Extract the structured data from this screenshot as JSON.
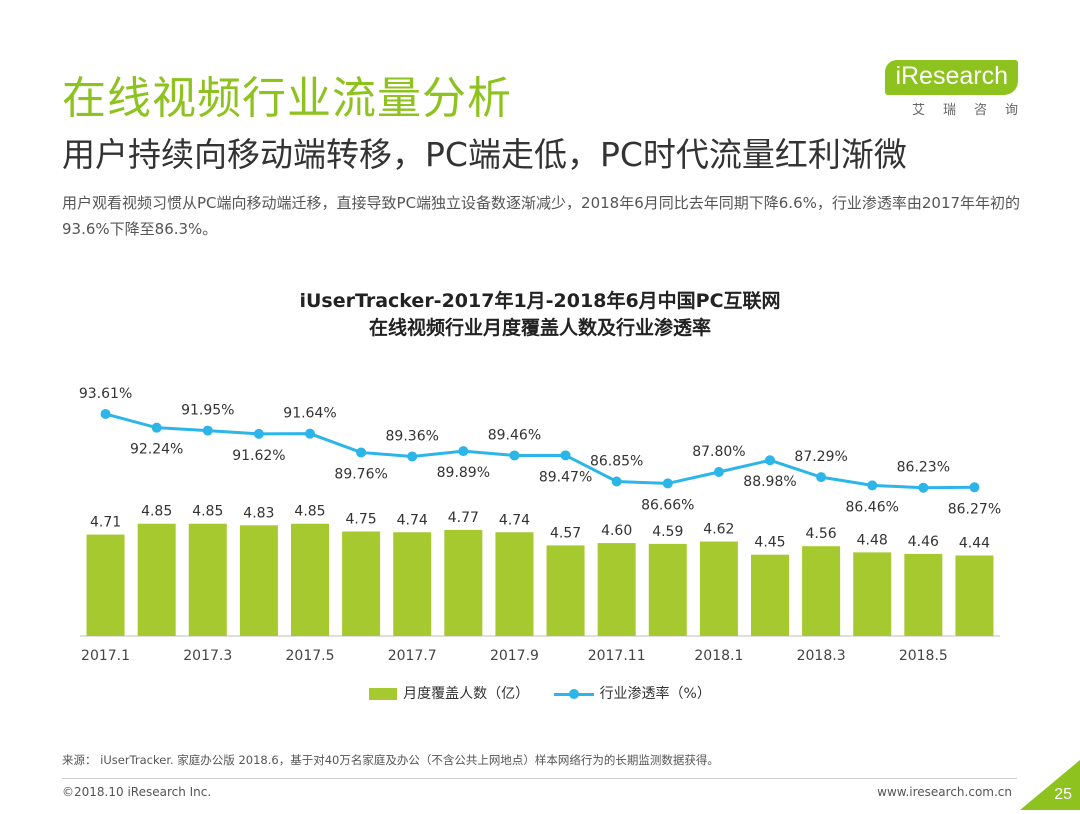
{
  "header": {
    "title": "在线视频行业流量分析",
    "subtitle": "用户持续向移动端转移，PC端走低，PC时代流量红利渐微",
    "description": "用户观看视频习惯从PC端向移动端迁移，直接导致PC端独立设备数逐渐减少，2018年6月同比去年同期下降6.6%，行业渗透率由2017年年初的93.6%下降至86.3%。"
  },
  "logo": {
    "brand_i": "i",
    "brand_rest": "Research",
    "chinese": "艾瑞咨询"
  },
  "chart_data": {
    "type": "bar+line",
    "title_line1": "iUserTracker-2017年1月-2018年6月中国PC互联网",
    "title_line2": "在线视频行业月度覆盖人数及行业渗透率",
    "categories": [
      "2017.1",
      "2017.2",
      "2017.3",
      "2017.4",
      "2017.5",
      "2017.6",
      "2017.7",
      "2017.8",
      "2017.9",
      "2017.10",
      "2017.11",
      "2017.12",
      "2018.1",
      "2018.2",
      "2018.3",
      "2018.4",
      "2018.5",
      "2018.6"
    ],
    "tick_labels": [
      "2017.1",
      "",
      "2017.3",
      "",
      "2017.5",
      "",
      "2017.7",
      "",
      "2017.9",
      "",
      "2017.11",
      "",
      "2018.1",
      "",
      "2018.3",
      "",
      "2018.5",
      ""
    ],
    "series": [
      {
        "name": "月度覆盖人数（亿）",
        "type": "bar",
        "color": "#a5c92e",
        "values": [
          4.71,
          4.85,
          4.85,
          4.83,
          4.85,
          4.75,
          4.74,
          4.77,
          4.74,
          4.57,
          4.6,
          4.59,
          4.62,
          4.45,
          4.56,
          4.48,
          4.46,
          4.44
        ],
        "labels": [
          "4.71",
          "4.85",
          "4.85",
          "4.83",
          "4.85",
          "4.75",
          "4.74",
          "4.77",
          "4.74",
          "4.57",
          "4.60",
          "4.59",
          "4.62",
          "4.45",
          "4.56",
          "4.48",
          "4.46",
          "4.44"
        ]
      },
      {
        "name": "行业渗透率（%）",
        "type": "line",
        "color": "#2cb5e8",
        "values": [
          93.61,
          92.24,
          91.95,
          91.62,
          91.64,
          89.76,
          89.36,
          89.89,
          89.46,
          89.47,
          86.85,
          86.66,
          87.8,
          88.98,
          87.29,
          86.46,
          86.23,
          86.27
        ],
        "labels": [
          "93.61%",
          "92.24%",
          "91.95%",
          "91.62%",
          "91.64%",
          "89.76%",
          "89.36%",
          "89.89%",
          "89.46%",
          "89.47%",
          "86.85%",
          "86.66%",
          "87.80%",
          "88.98%",
          "87.29%",
          "86.46%",
          "86.23%",
          "86.27%"
        ]
      }
    ],
    "bar_axis_range": [
      3.4,
      4.95
    ],
    "line_axis_range": [
      83,
      96
    ],
    "legend_position": "bottom"
  },
  "footer": {
    "source": "来源： iUserTracker. 家庭办公版 2018.6，基于对40万名家庭及办公（不含公共上网地点）样本网络行为的长期监测数据获得。",
    "copyright": "©2018.10 iResearch Inc.",
    "website": "www.iresearch.com.cn",
    "page": "25"
  },
  "colors": {
    "accent": "#8dc21f",
    "bar": "#a5c92e",
    "line": "#2cb5e8"
  }
}
